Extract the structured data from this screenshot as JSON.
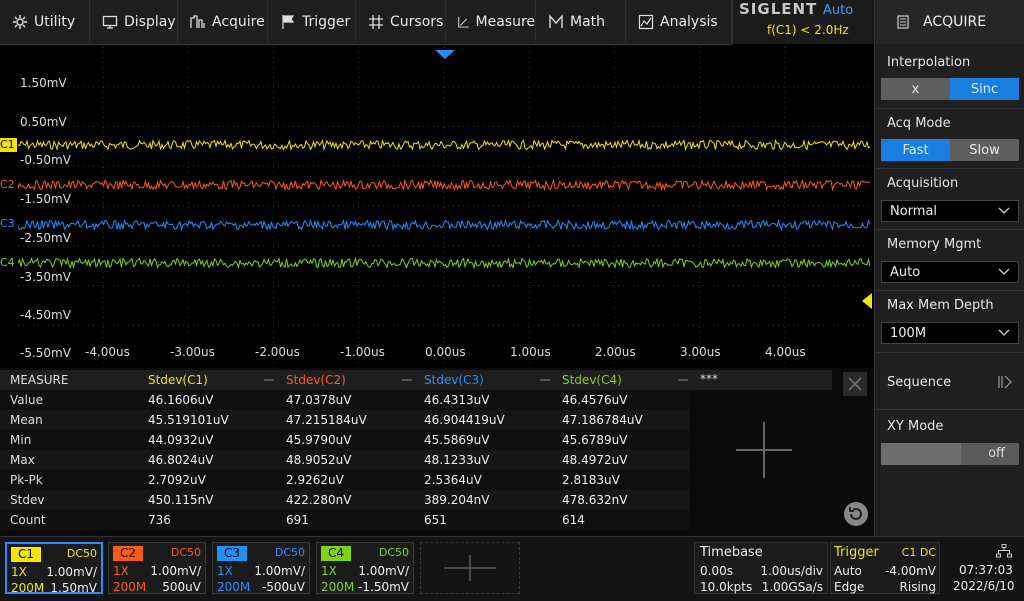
{
  "menu": {
    "utility": "Utility",
    "display": "Display",
    "acquire": "Acquire",
    "trigger": "Trigger",
    "cursors": "Cursors",
    "measure": "Measure",
    "math": "Math",
    "analysis": "Analysis"
  },
  "brand": {
    "logo": "SIGLENT",
    "mode": "Auto",
    "freq": "f(C1) < 2.0Hz"
  },
  "panel": {
    "title": "ACQUIRE",
    "interpolation": {
      "label": "Interpolation",
      "opt1": "x",
      "opt2": "Sinc",
      "selected": "Sinc"
    },
    "acq_mode": {
      "label": "Acq Mode",
      "opt1": "Fast",
      "opt2": "Slow",
      "selected": "Fast"
    },
    "acquisition": {
      "label": "Acquisition",
      "value": "Normal"
    },
    "memory_mgmt": {
      "label": "Memory Mgmt",
      "value": "Auto"
    },
    "max_mem_depth": {
      "label": "Max Mem Depth",
      "value": "100M"
    },
    "sequence": {
      "label": "Sequence"
    },
    "xy_mode": {
      "label": "XY Mode",
      "value": "off"
    }
  },
  "grid": {
    "y_labels": [
      "1.50mV",
      "0.50mV",
      "-0.50mV",
      "-1.50mV",
      "-2.50mV",
      "-3.50mV",
      "-4.50mV",
      "-5.50mV"
    ],
    "x_labels": [
      "-4.00us",
      "-3.00us",
      "-2.00us",
      "-1.00us",
      "0.00us",
      "1.00us",
      "2.00us",
      "3.00us",
      "4.00us"
    ],
    "ch_markers": [
      "C1",
      "C2",
      "C3",
      "C4"
    ]
  },
  "colors": {
    "c1": "#f2e600",
    "c2": "#ff5a14",
    "c3": "#1e90ff",
    "c4": "#7ed60a"
  },
  "measure": {
    "header": "MEASURE",
    "columns": [
      "Stdev(C1)",
      "Stdev(C2)",
      "Stdev(C3)",
      "Stdev(C4)",
      "***"
    ],
    "rows": [
      {
        "label": "Value",
        "v": [
          "46.1606uV",
          "47.0378uV",
          "46.4313uV",
          "46.4576uV"
        ]
      },
      {
        "label": "Mean",
        "v": [
          "45.519101uV",
          "47.215184uV",
          "46.904419uV",
          "47.186784uV"
        ]
      },
      {
        "label": "Min",
        "v": [
          "44.0932uV",
          "45.9790uV",
          "45.5869uV",
          "45.6789uV"
        ]
      },
      {
        "label": "Max",
        "v": [
          "46.8024uV",
          "48.9052uV",
          "48.1233uV",
          "48.4972uV"
        ]
      },
      {
        "label": "Pk-Pk",
        "v": [
          "2.7092uV",
          "2.9262uV",
          "2.5364uV",
          "2.8183uV"
        ]
      },
      {
        "label": "Stdev",
        "v": [
          "450.115nV",
          "422.280nV",
          "389.204nV",
          "478.632nV"
        ]
      },
      {
        "label": "Count",
        "v": [
          "736",
          "691",
          "651",
          "614"
        ]
      }
    ]
  },
  "channels": [
    {
      "name": "C1",
      "coupling": "DC50",
      "probe": "1X",
      "scale": "1.00mV/",
      "bw": "200M",
      "offset": "1.50mV"
    },
    {
      "name": "C2",
      "coupling": "DC50",
      "probe": "1X",
      "scale": "1.00mV/",
      "bw": "200M",
      "offset": "500uV"
    },
    {
      "name": "C3",
      "coupling": "DC50",
      "probe": "1X",
      "scale": "1.00mV/",
      "bw": "200M",
      "offset": "-500uV"
    },
    {
      "name": "C4",
      "coupling": "DC50",
      "probe": "1X",
      "scale": "1.00mV/",
      "bw": "200M",
      "offset": "-1.50mV"
    }
  ],
  "timebase": {
    "label": "Timebase",
    "delay": "0.00s",
    "scale": "1.00us/div",
    "points": "10.0kpts",
    "rate": "1.00GSa/s"
  },
  "trigger": {
    "label": "Trigger",
    "source": "C1 DC",
    "mode": "Auto",
    "level": "-4.00mV",
    "type": "Edge",
    "slope": "Rising"
  },
  "clock": {
    "time": "07:37:03",
    "date": "2022/6/10"
  }
}
